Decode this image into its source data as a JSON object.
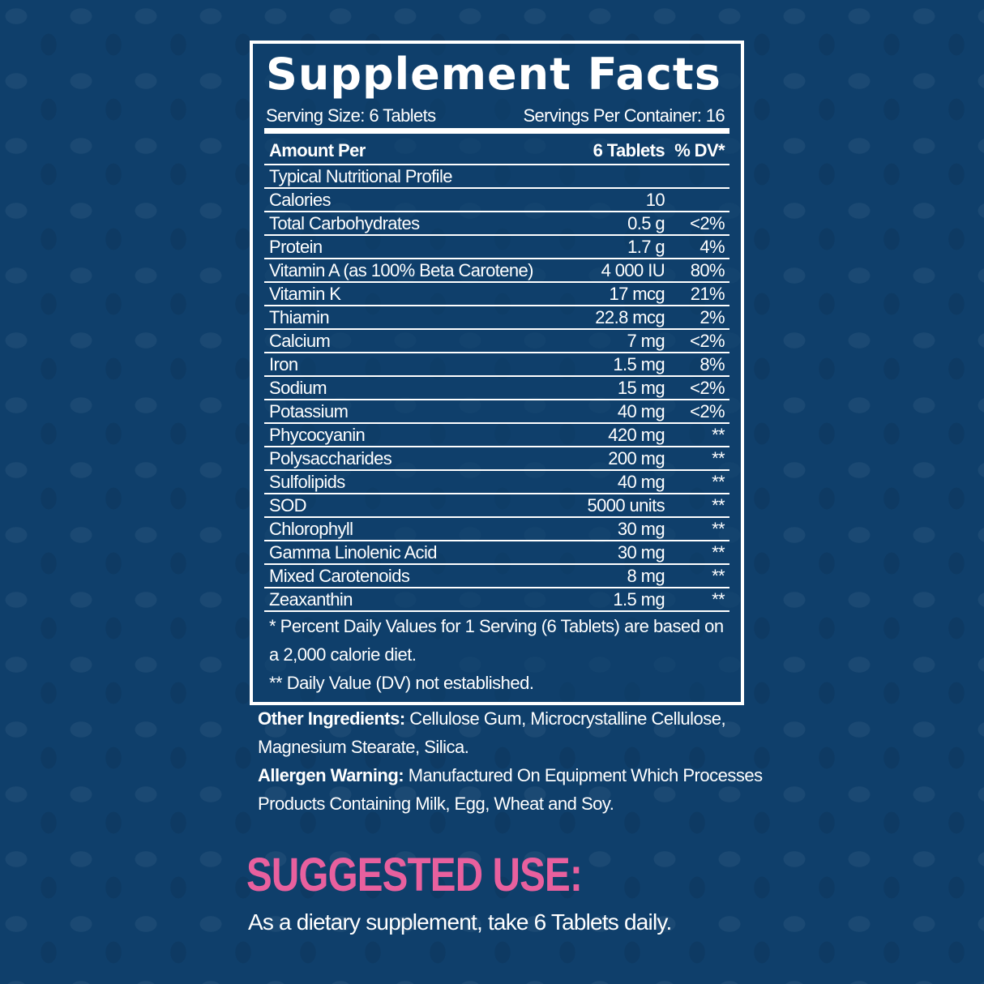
{
  "panel": {
    "title": "Supplement Facts",
    "serving_size": "Serving Size: 6 Tablets",
    "servings_per_container": "Servings Per Container: 16",
    "header": {
      "col1": "Amount Per",
      "col2": "6 Tablets",
      "col3": "% DV*"
    },
    "rows": [
      {
        "name": "Typical Nutritional Profile",
        "amount": "",
        "dv": ""
      },
      {
        "name": "Calories",
        "amount": "10",
        "dv": ""
      },
      {
        "name": "Total Carbohydrates",
        "amount": "0.5 g",
        "dv": "<2%"
      },
      {
        "name": "Protein",
        "amount": "1.7 g",
        "dv": "4%"
      },
      {
        "name": "Vitamin A (as 100% Beta Carotene)",
        "amount": "4 000 IU",
        "dv": "80%"
      },
      {
        "name": "Vitamin K",
        "amount": "17 mcg",
        "dv": "21%"
      },
      {
        "name": "Thiamin",
        "amount": "22.8 mcg",
        "dv": "2%"
      },
      {
        "name": "Calcium",
        "amount": "7 mg",
        "dv": "<2%"
      },
      {
        "name": "Iron",
        "amount": "1.5 mg",
        "dv": "8%"
      },
      {
        "name": "Sodium",
        "amount": "15 mg",
        "dv": "<2%"
      },
      {
        "name": "Potassium",
        "amount": "40 mg",
        "dv": "<2%"
      },
      {
        "name": "Phycocyanin",
        "amount": "420 mg",
        "dv": "**"
      },
      {
        "name": "Polysaccharides",
        "amount": "200 mg",
        "dv": "**"
      },
      {
        "name": "Sulfolipids",
        "amount": "40 mg",
        "dv": "**"
      },
      {
        "name": "SOD",
        "amount": "5000 units",
        "dv": "**"
      },
      {
        "name": "Chlorophyll",
        "amount": "30 mg",
        "dv": "**"
      },
      {
        "name": "Gamma Linolenic Acid",
        "amount": "30 mg",
        "dv": "**"
      },
      {
        "name": "Mixed Carotenoids",
        "amount": "8 mg",
        "dv": "**"
      },
      {
        "name": "Zeaxanthin",
        "amount": "1.5 mg",
        "dv": "**"
      }
    ],
    "footnotes": [
      "* Percent Daily Values for 1 Serving (6 Tablets) are based on",
      "a 2,000 calorie diet.",
      "** Daily Value (DV) not established."
    ]
  },
  "other_ingredients": {
    "label": "Other Ingredients:",
    "line1": " Cellulose Gum, Microcrystalline Cellulose,",
    "line2": "Magnesium Stearate, Silica."
  },
  "allergen": {
    "label": "Allergen Warning:",
    "line1": " Manufactured On Equipment Which Processes",
    "line2": "Products Containing Milk, Egg, Wheat and Soy."
  },
  "suggested_use": {
    "heading": "SUGGESTED USE:",
    "text": "As a dietary supplement, take 6 Tablets daily."
  },
  "colors": {
    "background": "#0f3f6b",
    "accent": "#e8609e",
    "text": "#ffffff"
  }
}
